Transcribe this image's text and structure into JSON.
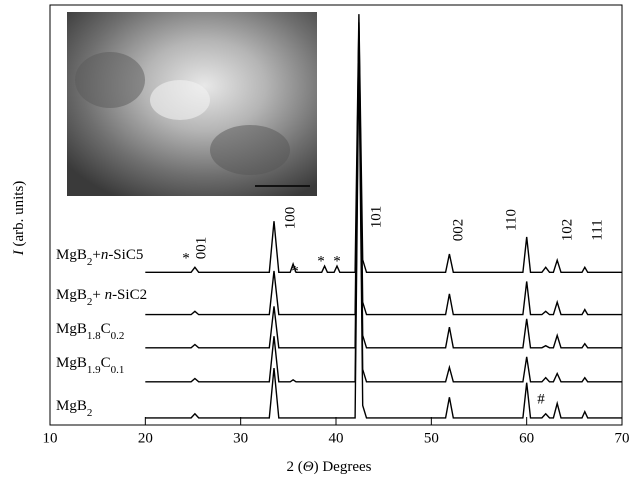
{
  "chart_data": {
    "type": "line",
    "xlabel": "2 (Θ) Degrees",
    "ylabel": "I (arb. units)",
    "x": [
      20,
      24.8,
      25.2,
      25.6,
      33.0,
      33.5,
      34.0,
      35.2,
      35.5,
      35.8,
      38.5,
      38.8,
      39.1,
      39.8,
      40.1,
      40.4,
      42.0,
      42.4,
      42.8,
      43.2,
      51.5,
      51.9,
      52.3,
      59.6,
      60.0,
      60.4,
      61.6,
      62.0,
      62.4,
      62.8,
      63.2,
      63.6,
      65.8,
      66.1,
      66.4,
      70
    ],
    "series": [
      {
        "name": "MgB2+n-SiC5",
        "color": "#000000",
        "values": [
          36.8,
          36.8,
          38.0,
          36.8,
          36.8,
          49.1,
          36.8,
          36.8,
          38.8,
          36.8,
          36.8,
          38.3,
          36.8,
          36.8,
          38.3,
          36.8,
          36.8,
          99,
          39.8,
          36.8,
          36.8,
          41.2,
          36.8,
          36.8,
          45.3,
          36.8,
          36.8,
          38.0,
          36.8,
          36.8,
          39.7,
          36.8,
          36.8,
          38.0,
          36.8,
          36.8
        ]
      },
      {
        "name": "MgB2+ n-SiC2",
        "color": "#000000",
        "values": [
          26.6,
          26.6,
          27.4,
          26.6,
          26.6,
          37.1,
          26.6,
          26.6,
          26.6,
          26.6,
          26.6,
          26.6,
          26.6,
          26.6,
          26.6,
          26.6,
          26.6,
          97,
          29.6,
          26.6,
          26.6,
          31.6,
          26.6,
          26.6,
          34.6,
          26.6,
          26.6,
          27.4,
          26.6,
          26.6,
          29.6,
          26.6,
          26.6,
          27.8,
          26.6,
          26.6
        ]
      },
      {
        "name": "MgB1.8C0.2",
        "color": "#000000",
        "values": [
          18.6,
          18.6,
          19.4,
          18.6,
          18.6,
          28.6,
          18.6,
          18.6,
          18.6,
          18.6,
          18.6,
          18.6,
          18.6,
          18.6,
          18.6,
          18.6,
          18.6,
          95,
          21.6,
          18.6,
          18.6,
          23.6,
          18.6,
          18.6,
          25.6,
          18.6,
          18.6,
          19.1,
          18.6,
          18.6,
          21.6,
          18.6,
          18.6,
          19.6,
          18.6,
          18.6
        ]
      },
      {
        "name": "MgB1.9C0.1",
        "color": "#000000",
        "values": [
          10.4,
          10.4,
          11.2,
          10.4,
          10.4,
          21.4,
          10.4,
          10.4,
          10.9,
          10.4,
          10.4,
          10.4,
          10.4,
          10.4,
          10.4,
          10.4,
          10.4,
          93,
          13.4,
          10.4,
          10.4,
          13.9,
          10.4,
          10.4,
          16.4,
          10.4,
          10.4,
          11.4,
          10.4,
          10.4,
          12.4,
          10.4,
          10.4,
          11.4,
          10.4,
          10.4
        ]
      },
      {
        "name": "MgB2",
        "color": "#000000",
        "values": [
          1.7,
          1.7,
          2.7,
          1.7,
          1.7,
          13.7,
          1.7,
          1.7,
          1.7,
          1.7,
          1.7,
          1.7,
          1.7,
          1.7,
          1.7,
          1.7,
          1.7,
          90,
          4.7,
          1.7,
          1.7,
          6.7,
          1.7,
          1.7,
          10.2,
          1.7,
          1.7,
          2.7,
          1.7,
          1.7,
          5.2,
          1.7,
          1.7,
          3.2,
          1.7,
          1.7
        ]
      }
    ],
    "annotations": [
      "001",
      "100",
      "101",
      "002",
      "110",
      "102",
      "111",
      "*",
      "*",
      "*",
      "*",
      "#"
    ],
    "xlim": [
      10,
      70
    ],
    "xticks": [
      10,
      20,
      30,
      40,
      50,
      60,
      70
    ],
    "ylim": [
      0,
      100
    ]
  }
}
